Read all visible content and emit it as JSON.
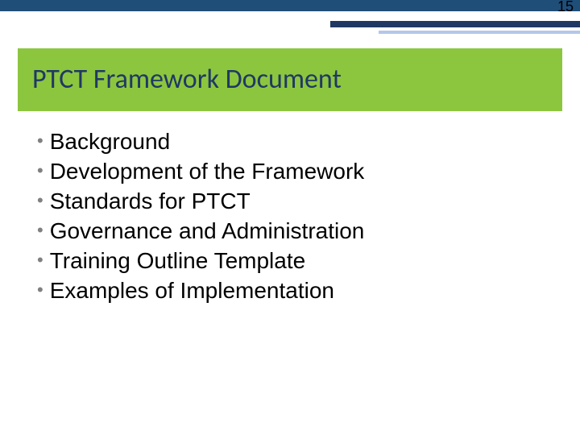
{
  "page_number": "15",
  "colors": {
    "header_bar": "#1f4e79",
    "stripe_dark": "#203864",
    "stripe_light": "#b4c7e7",
    "title_bg": "#8cc63f",
    "title_text": "#203864",
    "bullet": "#808080",
    "body_text": "#000000",
    "background": "#ffffff"
  },
  "title": {
    "text": "PTCT Framework Document",
    "fontsize": 34
  },
  "bullets": {
    "fontsize": 28,
    "items": [
      {
        "label": "Background"
      },
      {
        "label": "Development of the Framework"
      },
      {
        "label": "Standards for PTCT"
      },
      {
        "label": "Governance and Administration"
      },
      {
        "label": "Training Outline Template"
      },
      {
        "label": "Examples of Implementation"
      }
    ]
  }
}
